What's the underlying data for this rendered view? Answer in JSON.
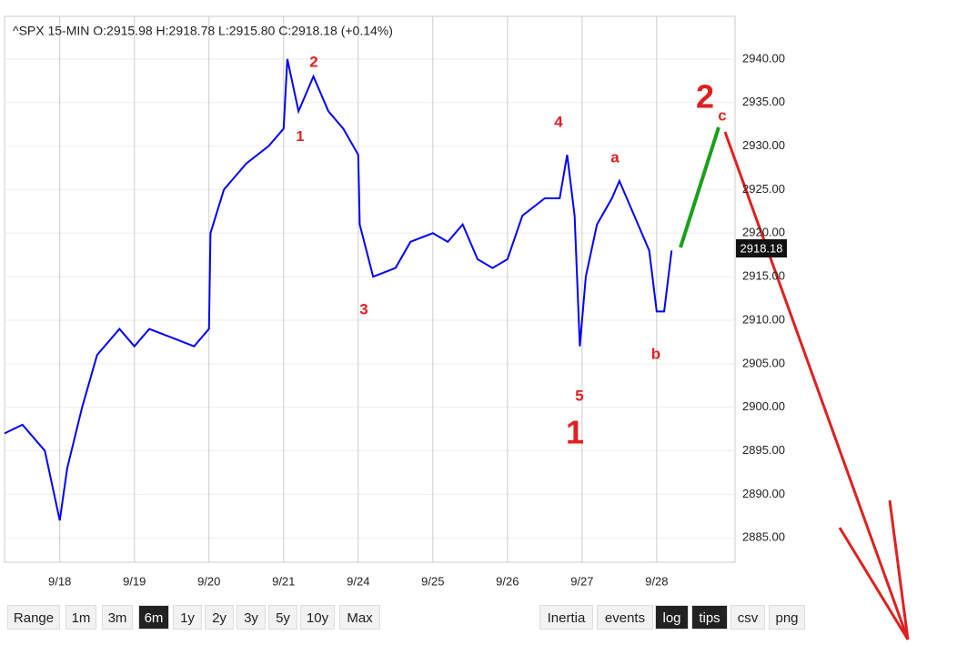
{
  "chart_data": {
    "type": "line",
    "title": "^SPX  15-MIN  O:2915.98  H:2918.78  L:2915.80  C:2918.18  (+0.14%)",
    "last_price_label": "2918.18",
    "x": [
      -0.74,
      -0.5,
      -0.2,
      0,
      0.1,
      0.3,
      0.5,
      0.8,
      1.0,
      1.2,
      1.5,
      1.8,
      2.0,
      2.02,
      2.2,
      2.5,
      2.8,
      3.0,
      3.05,
      3.2,
      3.4,
      3.6,
      3.8,
      4.0,
      4.02,
      4.2,
      4.5,
      4.7,
      5.0,
      5.2,
      5.4,
      5.6,
      5.8,
      6.0,
      6.2,
      6.5,
      6.7,
      6.8,
      6.9,
      6.97,
      7.05,
      7.2,
      7.4,
      7.5,
      7.7,
      7.9,
      8.0,
      8.1,
      8.2
    ],
    "series": [
      {
        "name": "^SPX",
        "color": "#0000ff",
        "values": [
          2897,
          2898,
          2895,
          2887,
          2893,
          2900,
          2906,
          2909,
          2907,
          2909,
          2908,
          2907,
          2909,
          2920,
          2925,
          2928,
          2930,
          2932,
          2940,
          2934,
          2938,
          2934,
          2932,
          2929,
          2921,
          2915,
          2916,
          2919,
          2920,
          2919,
          2921,
          2917,
          2916,
          2917,
          2922,
          2924,
          2924,
          2929,
          2922,
          2907,
          2915,
          2921,
          2924,
          2926,
          2922,
          2918,
          2911,
          2911,
          2918
        ]
      }
    ],
    "xlim": [
      -0.74,
      9.05
    ],
    "xticks": [
      {
        "value": 0,
        "label": "9/18"
      },
      {
        "value": 1,
        "label": "9/19"
      },
      {
        "value": 2,
        "label": "9/20"
      },
      {
        "value": 3,
        "label": "9/21"
      },
      {
        "value": 4,
        "label": "9/24"
      },
      {
        "value": 5,
        "label": "9/25"
      },
      {
        "value": 6,
        "label": "9/26"
      },
      {
        "value": 7,
        "label": "9/27"
      },
      {
        "value": 8,
        "label": "9/28"
      }
    ],
    "ylim": [
      2882.2,
      2944.9
    ],
    "yticks": [
      {
        "value": 2885,
        "label": "2885.00"
      },
      {
        "value": 2890,
        "label": "2890.00"
      },
      {
        "value": 2895,
        "label": "2895.00"
      },
      {
        "value": 2900,
        "label": "2900.00"
      },
      {
        "value": 2905,
        "label": "2905.00"
      },
      {
        "value": 2910,
        "label": "2910.00"
      },
      {
        "value": 2915,
        "label": "2915.00"
      },
      {
        "value": 2920,
        "label": "2920.00"
      },
      {
        "value": 2925,
        "label": "2925.00"
      },
      {
        "value": 2930,
        "label": "2930.00"
      },
      {
        "value": 2935,
        "label": "2935.00"
      },
      {
        "value": 2940,
        "label": "2940.00"
      }
    ],
    "grid": true,
    "annotations": [
      "2",
      "1",
      "3",
      "4",
      "5",
      "1",
      "a",
      "b",
      "2",
      "c"
    ]
  },
  "toolbar": {
    "left": [
      "Range",
      "1m",
      "3m",
      "6m",
      "1y",
      "2y",
      "3y",
      "5y",
      "10y",
      "Max"
    ],
    "right": [
      "Inertia",
      "events",
      "log",
      "tips",
      "csv",
      "png"
    ]
  }
}
